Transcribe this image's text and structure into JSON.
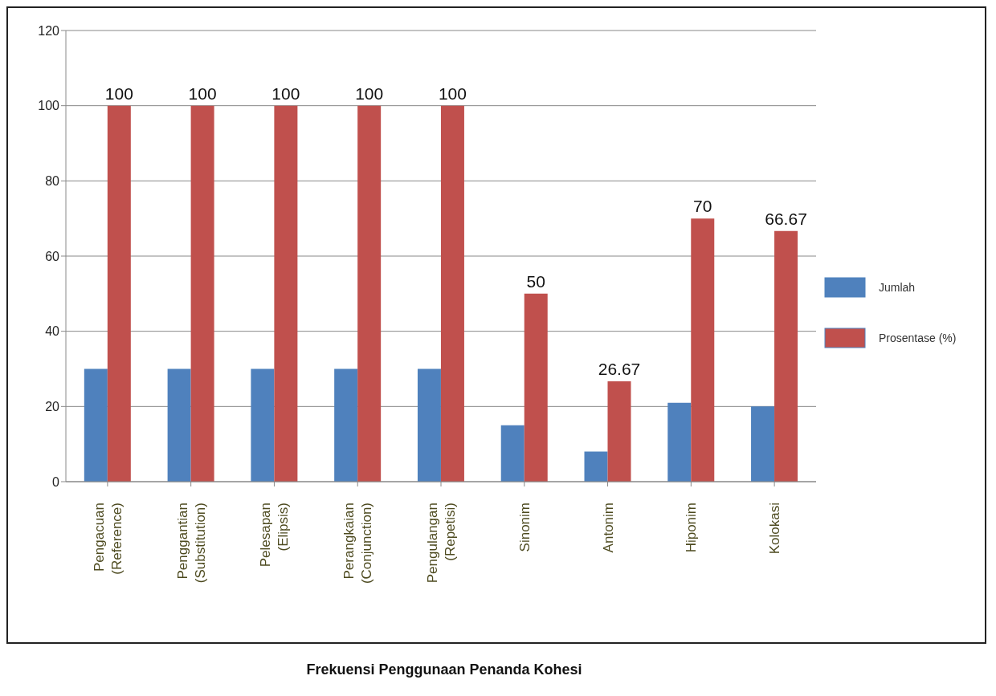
{
  "chart_data": {
    "type": "bar",
    "title": "Frekuensi Penggunaan Penanda Kohesi",
    "categories": [
      "Pengacuan (Reference)",
      "Penggantian (Substitution)",
      "Pelesapan (Elipsis)",
      "Perangkaian (Conjunction)",
      "Pengulangan (Repetisi)",
      "Sinonim",
      "Antonim",
      "Hiponim",
      "Kolokasi"
    ],
    "series": [
      {
        "name": "Jumlah",
        "color": "#4f81bd",
        "values": [
          30,
          30,
          30,
          30,
          30,
          15,
          8,
          21,
          20
        ]
      },
      {
        "name": "Prosentase (%)",
        "color": "#c0504d",
        "values": [
          100,
          100,
          100,
          100,
          100,
          50,
          26.67,
          70,
          66.67
        ],
        "value_labels": [
          "100",
          "100",
          "100",
          "100",
          "100",
          "50",
          "26.67",
          "70",
          "66.67"
        ]
      }
    ],
    "ylim": [
      0,
      120
    ],
    "yticks": [
      0,
      20,
      40,
      60,
      80,
      100,
      120
    ],
    "grid": "y",
    "legend": "right"
  }
}
